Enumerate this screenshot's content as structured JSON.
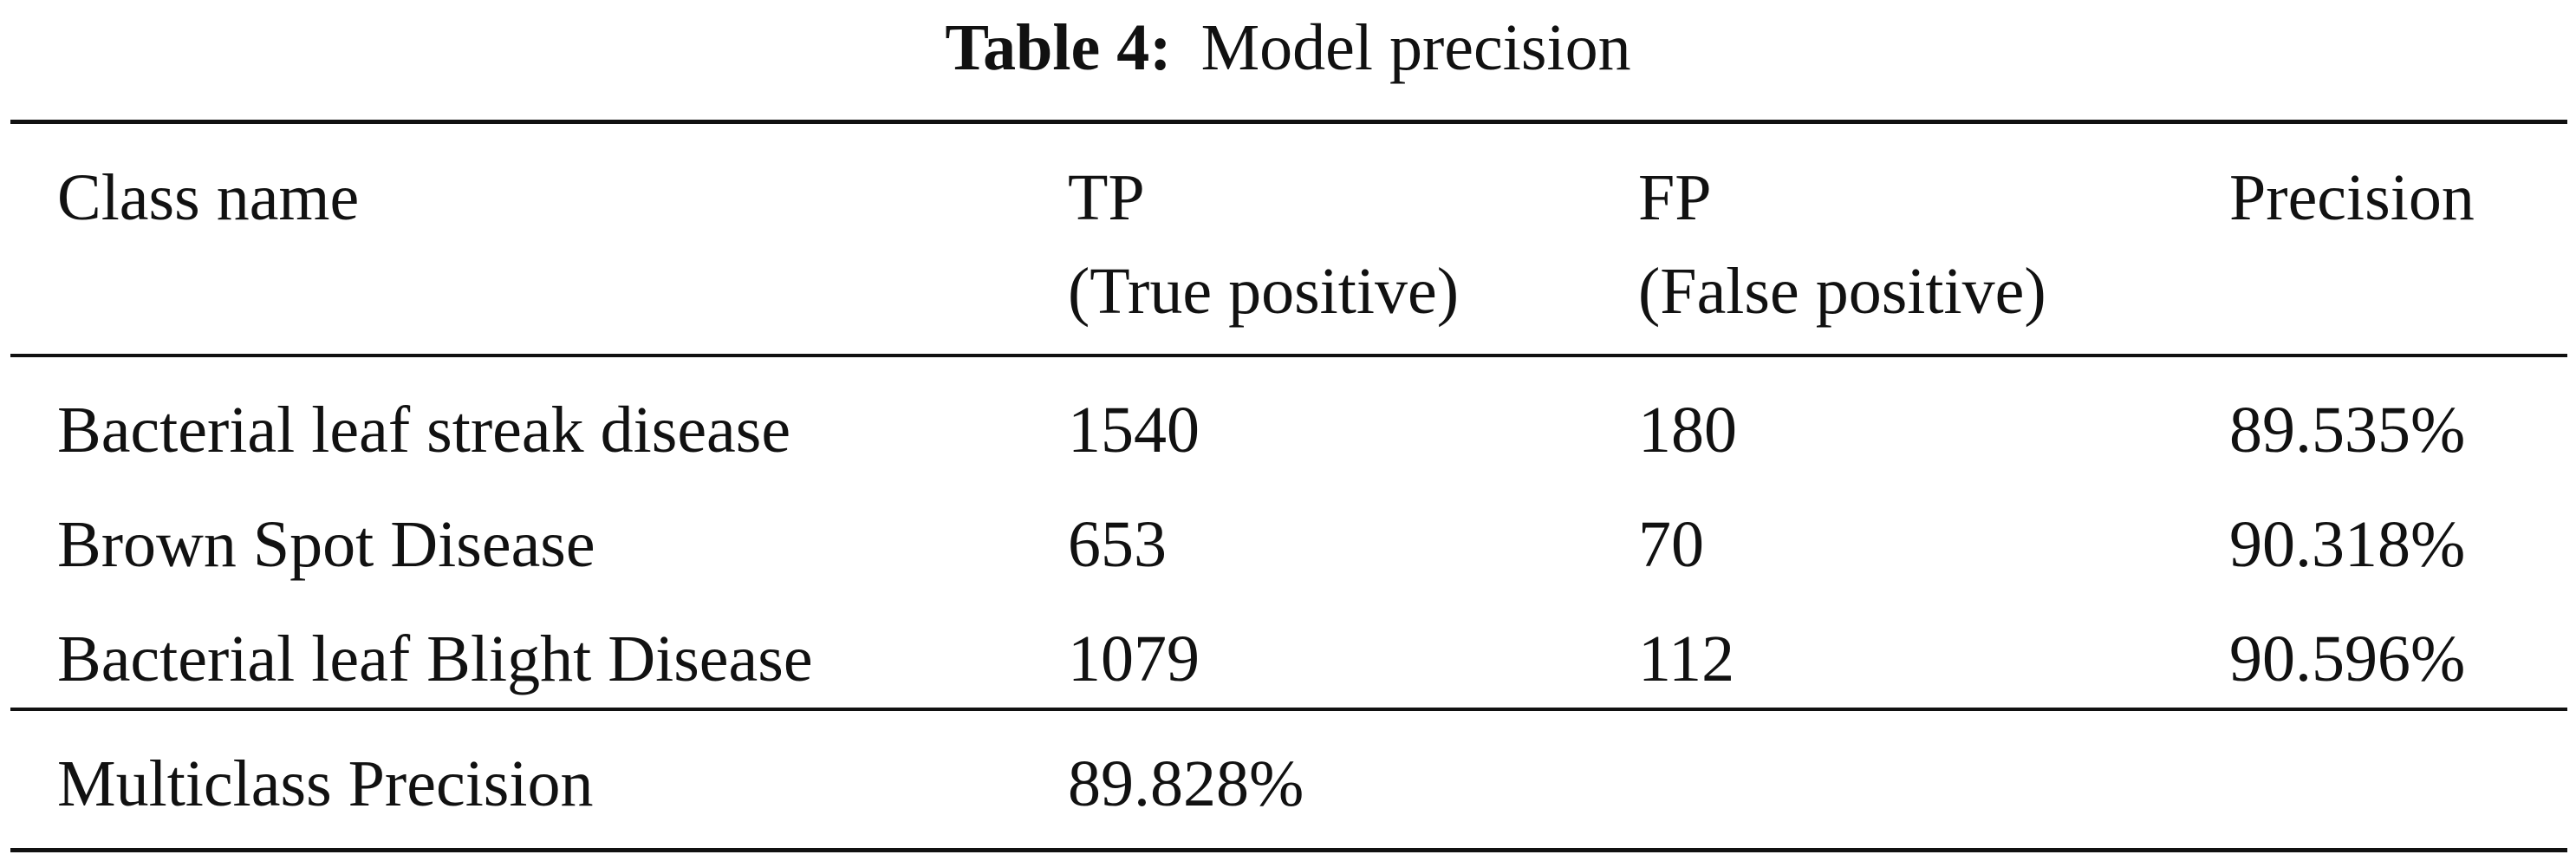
{
  "caption": {
    "label": "Table 4:",
    "title": "Model precision"
  },
  "table": {
    "headers": [
      {
        "line1": "Class name",
        "line2": ""
      },
      {
        "line1": "TP",
        "line2": "(True positive)"
      },
      {
        "line1": "FP",
        "line2": "(False positive)"
      },
      {
        "line1": "Precision",
        "line2": ""
      }
    ],
    "rows": [
      {
        "class_name": "Bacterial leaf streak disease",
        "tp": "1540",
        "fp": "180",
        "precision": "89.535%"
      },
      {
        "class_name": "Brown Spot Disease",
        "tp": "653",
        "fp": "70",
        "precision": "90.318%"
      },
      {
        "class_name": "Bacterial leaf Blight Disease",
        "tp": "1079",
        "fp": "112",
        "precision": "90.596%"
      }
    ],
    "summary": {
      "label": "Multiclass Precision",
      "value": "89.828%"
    }
  }
}
